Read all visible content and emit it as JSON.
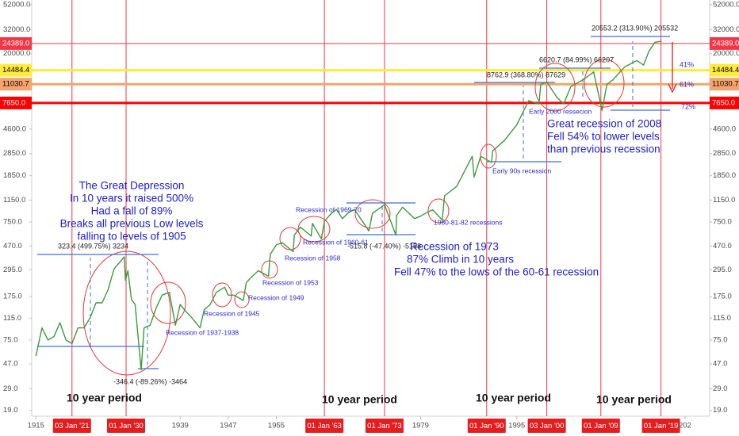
{
  "chart_data": {
    "type": "line",
    "log_scale": true,
    "grid": false,
    "color": "#3c9a3c",
    "x": [
      1915,
      1916,
      1917,
      1918,
      1919,
      1920,
      1921,
      1922,
      1923,
      1924,
      1925,
      1926,
      1927,
      1928,
      1929.7,
      1929.9,
      1930.3,
      1930.9,
      1931.5,
      1932.5,
      1933,
      1934,
      1935,
      1936,
      1937.2,
      1938.2,
      1939,
      1940,
      1941,
      1942.3,
      1943,
      1944,
      1945,
      1946.4,
      1947,
      1948,
      1949.5,
      1950,
      1951,
      1952,
      1953.7,
      1954,
      1955,
      1956,
      1957.8,
      1958,
      1959,
      1960.8,
      1961,
      1962.5,
      1963,
      1964,
      1965,
      1966,
      1967,
      1968,
      1970.4,
      1971,
      1973,
      1974.9,
      1975,
      1976,
      1978,
      1979,
      1980,
      1981,
      1982.6,
      1983,
      1985,
      1987.6,
      1987.9,
      1989,
      1990.8,
      1991,
      1993,
      1995,
      1997,
      1998.7,
      1999,
      2000,
      2001.7,
      2002.8,
      2004,
      2006,
      2007.8,
      2009.2,
      2010,
      2011,
      2013,
      2015,
      2016.1,
      2017,
      2018,
      2019.1
    ],
    "values": [
      55,
      95,
      75,
      80,
      105,
      75,
      70,
      95,
      95,
      115,
      155,
      155,
      200,
      300,
      380,
      240,
      290,
      165,
      150,
      42,
      95,
      100,
      140,
      180,
      190,
      100,
      150,
      130,
      115,
      95,
      135,
      150,
      190,
      210,
      180,
      180,
      162,
      230,
      260,
      290,
      260,
      400,
      480,
      500,
      420,
      580,
      680,
      570,
      730,
      540,
      760,
      870,
      960,
      800,
      900,
      960,
      630,
      890,
      1050,
      580,
      850,
      1000,
      800,
      840,
      900,
      950,
      780,
      1250,
      1500,
      2700,
      1800,
      2700,
      2400,
      3000,
      3700,
      5000,
      8000,
      7500,
      11000,
      11500,
      8500,
      7500,
      10500,
      12000,
      14000,
      6600,
      11000,
      12000,
      15500,
      17500,
      16000,
      21000,
      25000,
      25500
    ],
    "xlim": [
      1914.3,
      2027.1
    ],
    "ylim": [
      17.5,
      57000
    ],
    "xticks": [
      1915,
      1939,
      1947,
      1955,
      1979,
      1995,
      {
        "value": 2023,
        "label": "202"
      }
    ],
    "yticks": [
      {
        "value": 19,
        "label": "19.0"
      },
      {
        "value": 29,
        "label": "29.0"
      },
      {
        "value": 47,
        "label": "47.0"
      },
      {
        "value": 75,
        "label": "75.0"
      },
      {
        "value": 115,
        "label": "115.0"
      },
      {
        "value": 175,
        "label": "175.0"
      },
      {
        "value": 295,
        "label": "295.0"
      },
      {
        "value": 470,
        "label": "470.0"
      },
      {
        "value": 750,
        "label": "750.0"
      },
      {
        "value": 1150,
        "label": "1150.0"
      },
      {
        "value": 1850,
        "label": "1850.0"
      },
      {
        "value": 2850,
        "label": "2850.0"
      },
      {
        "value": 4600,
        "label": "4600.0"
      },
      {
        "value": 20000,
        "label": "20000.0"
      },
      {
        "value": 32000,
        "label": "32000.0"
      },
      {
        "value": 52000,
        "label": "52000.0"
      }
    ],
    "levels": [
      {
        "value": 24389,
        "label": "24389.0",
        "color": "#f23645",
        "text_color": "#ffffff"
      },
      {
        "value": 14484.4,
        "label": "14484.4",
        "color": "#ffeb3b",
        "text_color": "#000000"
      },
      {
        "value": 11030.7,
        "label": "11030.7",
        "color": "#f4a46c",
        "text_color": "#000000"
      },
      {
        "value": 7650,
        "label": "7650.0",
        "color": "#ff0000",
        "text_color": "#ffffff"
      }
    ],
    "vlines": [
      {
        "value": 1921,
        "label": "03 Jan '21"
      },
      {
        "value": 1930,
        "label": "01 Jan '30"
      },
      {
        "value": 1963,
        "label": "01 Jan '63"
      },
      {
        "value": 1973,
        "label": "01 Jan '73"
      },
      {
        "value": 1990,
        "label": "01 Jan '90"
      },
      {
        "value": 2000,
        "label": "03 Jan '00"
      },
      {
        "value": 2009,
        "label": "01 Jan '09"
      },
      {
        "value": 2019,
        "label": "01 Jan '19"
      }
    ],
    "notes": [
      [
        "The Great Depression",
        "In 10 years it raised 500%",
        "Had a fall of 89%",
        "Breaks all previous Low levels",
        "falling to levels of 1905"
      ],
      [
        "Recession of 1973",
        "87% Climb in 10 years",
        "Fell 47% to the lows of the 60-61 recession"
      ],
      [
        "Great recession of 2008",
        "Fell 54% to lower levels",
        "than previous recession"
      ]
    ],
    "recession_labels": [
      "Recession of 1937-1938",
      "Recession of 1945",
      "Recession of 1949",
      "Recession of 1953",
      "Recession of 1958",
      "Recession of 1960-61",
      "Recession of 1969-70",
      "1980-81-82 recessions",
      "Early 90s recession",
      "Early 2000 ressecion"
    ],
    "measurements": [
      "323.4 (499.75%) 3234",
      "-346.4 (-89.26%) -3464",
      "-515.8 (-47.40%) -5158",
      "8762.9 (368.80%) 87629",
      "6620.7 (84.99%) 66207",
      "20553.2 (313.90%) 205532"
    ],
    "percent_labels": [
      "41%",
      "61%",
      "72%"
    ],
    "periods": [
      "10 year period",
      "10 year period",
      "10 year period",
      "10 year period"
    ]
  }
}
